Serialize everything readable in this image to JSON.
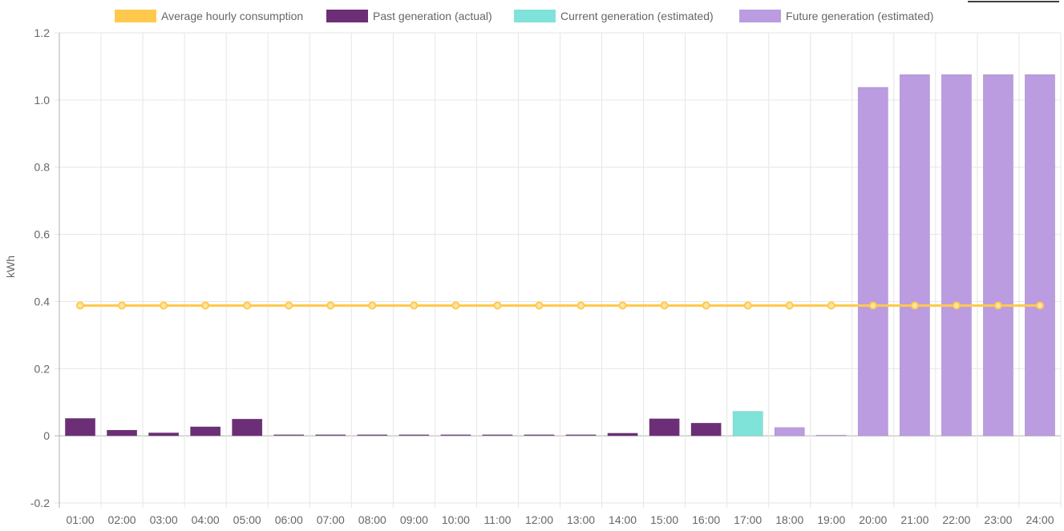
{
  "chart_data": {
    "type": "bar",
    "ylabel": "kWh",
    "xlabel": "",
    "ylim": [
      -0.2,
      1.2
    ],
    "y_ticks": [
      -0.2,
      0,
      0.2,
      0.4,
      0.6,
      0.8,
      1.0,
      1.2
    ],
    "y_tick_labels": [
      "-0.2",
      "0",
      "0.2",
      "0.4",
      "0.6",
      "0.8",
      "1.0",
      "1.2"
    ],
    "grid": true,
    "legend_position": "top",
    "categories": [
      "01:00",
      "02:00",
      "03:00",
      "04:00",
      "05:00",
      "06:00",
      "07:00",
      "08:00",
      "09:00",
      "10:00",
      "11:00",
      "12:00",
      "13:00",
      "14:00",
      "15:00",
      "16:00",
      "17:00",
      "18:00",
      "19:00",
      "20:00",
      "21:00",
      "22:00",
      "23:00",
      "24:00"
    ],
    "series": [
      {
        "name": "Average hourly consumption",
        "kind": "line",
        "color": "#ffc94d",
        "values": [
          0.388,
          0.388,
          0.388,
          0.388,
          0.388,
          0.388,
          0.388,
          0.388,
          0.388,
          0.388,
          0.388,
          0.388,
          0.388,
          0.388,
          0.388,
          0.388,
          0.388,
          0.388,
          0.388,
          0.388,
          0.388,
          0.388,
          0.388,
          0.388
        ]
      },
      {
        "name": "Past generation (actual)",
        "kind": "bar",
        "color": "#6c2f77",
        "values": [
          0.052,
          0.017,
          0.009,
          0.027,
          0.05,
          0.001,
          0.001,
          0.001,
          0.001,
          0.001,
          0.001,
          0.001,
          0.001,
          0.008,
          0.051,
          0.038,
          null,
          null,
          null,
          null,
          null,
          null,
          null,
          null
        ]
      },
      {
        "name": "Current generation (estimated)",
        "kind": "bar",
        "color": "#7fe3d9",
        "values": [
          null,
          null,
          null,
          null,
          null,
          null,
          null,
          null,
          null,
          null,
          null,
          null,
          null,
          null,
          null,
          null,
          0.073,
          null,
          null,
          null,
          null,
          null,
          null,
          null
        ]
      },
      {
        "name": "Future generation (estimated)",
        "kind": "bar",
        "color": "#bb9ce0",
        "values": [
          null,
          null,
          null,
          null,
          null,
          null,
          null,
          null,
          null,
          null,
          null,
          null,
          null,
          null,
          null,
          null,
          null,
          0.025,
          0,
          1.038,
          1.076,
          1.076,
          1.076,
          1.076
        ]
      }
    ]
  }
}
